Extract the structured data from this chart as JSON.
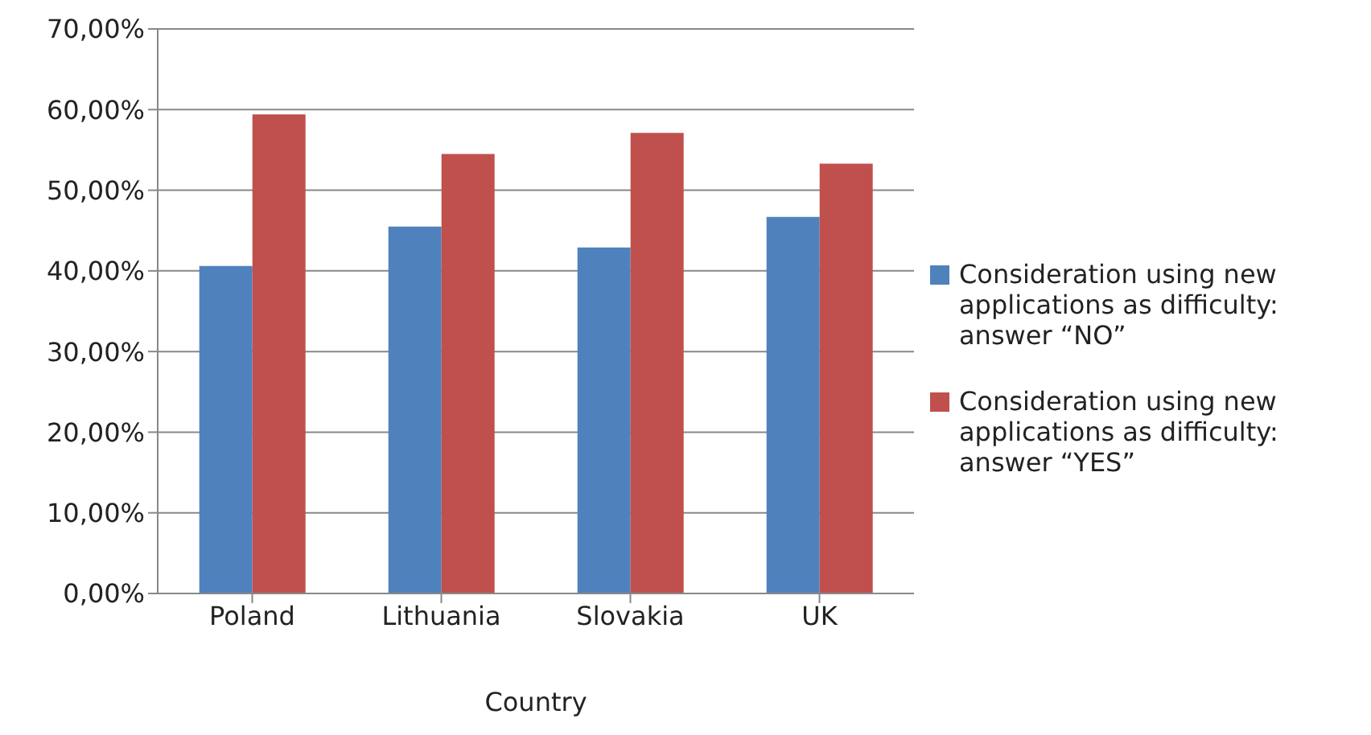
{
  "chart_data": {
    "type": "bar",
    "xlabel": "Country",
    "categories": [
      "Poland",
      "Lithuania",
      "Slovakia",
      "UK"
    ],
    "series": [
      {
        "name": "Consideration using new applications as difficulty: answer “NO”",
        "color": "#4f81bd",
        "values": [
          40.6,
          45.5,
          42.9,
          46.7
        ]
      },
      {
        "name": "Consideration using new applications as difficulty: answer “YES”",
        "color": "#c0504d",
        "values": [
          59.4,
          54.5,
          57.1,
          53.3
        ]
      }
    ],
    "ylim": [
      0,
      70
    ],
    "yticks": [
      {
        "value": 0,
        "label": "0,00%"
      },
      {
        "value": 10,
        "label": "10,00%"
      },
      {
        "value": 20,
        "label": "20,00%"
      },
      {
        "value": 30,
        "label": "30,00%"
      },
      {
        "value": 40,
        "label": "40,00%"
      },
      {
        "value": 50,
        "label": "50,00%"
      },
      {
        "value": 60,
        "label": "60,00%"
      },
      {
        "value": 70,
        "label": "70,00%"
      }
    ],
    "grid": "y",
    "legend": "right"
  }
}
